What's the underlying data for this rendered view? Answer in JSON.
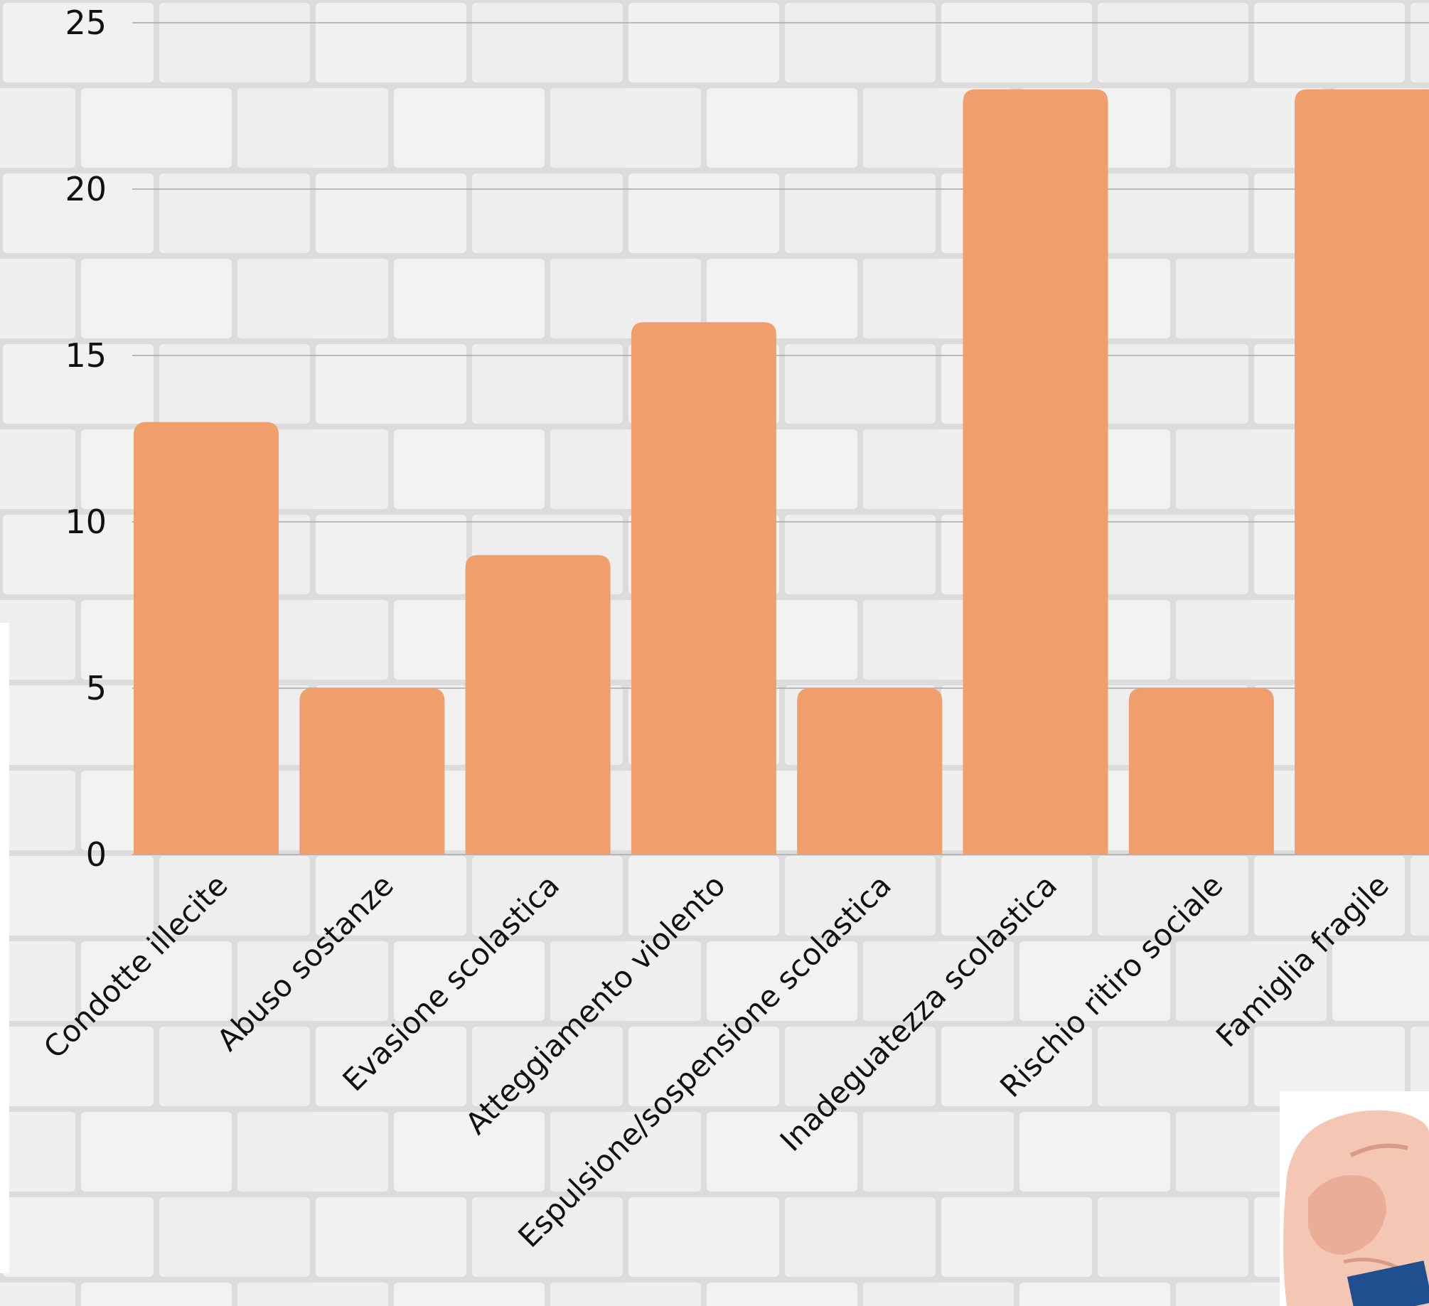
{
  "chart_data": {
    "type": "bar",
    "categories": [
      "Condotte illecite",
      "Abuso sostanze",
      "Evasione scolastica",
      "Atteggiamento violento",
      "Espulsione/sospensione scolastica",
      "Inadeguatezza scolastica",
      "Rischio ritiro sociale",
      "Famiglia fragile"
    ],
    "values": [
      13,
      5,
      9,
      16,
      5,
      23,
      5,
      23
    ],
    "title": "",
    "xlabel": "",
    "ylabel": "",
    "ylim": [
      0,
      25
    ],
    "yticks": [
      0,
      5,
      10,
      15,
      20,
      25
    ],
    "grid": true,
    "bar_color": "#f09e6c",
    "gridline_color": "#a8a8a8",
    "background": "white brick wall"
  }
}
